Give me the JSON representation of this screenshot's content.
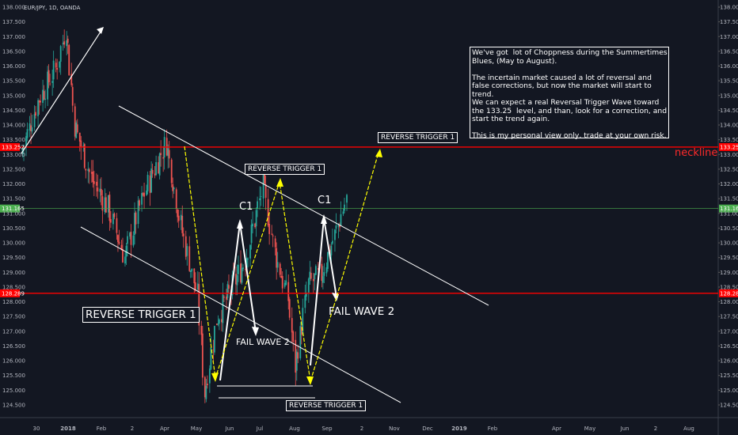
{
  "symbol_label": "EUR/JPY, 1D, OANDA",
  "note": "We've got  lot of Choppness during the Summertimes\nBlues, (May to August).\n\nThe incertain market caused a lot of reversal and\nfalse corrections, but now the market will start to\ntrend.\nWe can expect a real Reversal Trigger Wave toward\nthe 133.25  level, and than, look for a correction, and\nstart the trend again.\n\nThis is my personal view only, trade at your own risk.",
  "labels": {
    "rt_big": "REVERSE TRIGGER 1",
    "rt_mid": "REVERSE TRIGGER 1",
    "rt_top": "REVERSE TRIGGER 1",
    "rt_bottom": "REVERSE TRIGGER 1",
    "c1_left": "C1",
    "c1_right": "C1",
    "fail_left": "FAIL WAVE 2",
    "fail_right": "FAIL WAVE 2",
    "neckline": "neckline"
  },
  "colors": {
    "background": "#131722",
    "up_candle": "#26a69a",
    "down_candle": "#ef5350",
    "level_line": "#ff0000",
    "current_line": "#4caf50",
    "wave_arrow": "#ffff00",
    "channel": "#ffffff"
  },
  "chart_data": {
    "type": "candlestick",
    "title": "EUR/JPY, 1D, OANDA",
    "y_ticks": [
      124.5,
      125.0,
      125.5,
      126.0,
      126.5,
      127.0,
      127.5,
      128.0,
      128.5,
      129.0,
      129.5,
      130.0,
      130.5,
      131.0,
      131.5,
      132.0,
      132.5,
      133.0,
      133.5,
      134.0,
      134.5,
      135.0,
      135.5,
      136.0,
      136.5,
      137.0,
      137.5,
      138.0
    ],
    "ylim": [
      124.2,
      138.15
    ],
    "x_ticks": [
      "30",
      "2018",
      "Feb",
      "2",
      "Apr",
      "May",
      "Jun",
      "Jul",
      "Aug",
      "Sep",
      "2",
      "Nov",
      "Dec",
      "2019",
      "Feb",
      "Apr",
      "May",
      "Jun",
      "2",
      "Aug"
    ],
    "levels": [
      {
        "value": 133.252,
        "label": "133.252",
        "color": "#ff0000"
      },
      {
        "value": 128.289,
        "label": "128.289",
        "color": "#ff0000"
      },
      {
        "value": 131.165,
        "label": "131.165",
        "color": "#4caf50"
      }
    ],
    "price_path": [
      [
        "2017-12-26",
        133.0
      ],
      [
        "2018-01-09",
        134.8
      ],
      [
        "2018-01-24",
        135.9
      ],
      [
        "2018-02-02",
        137.3
      ],
      [
        "2018-02-09",
        134.0
      ],
      [
        "2018-02-23",
        132.2
      ],
      [
        "2018-03-09",
        131.2
      ],
      [
        "2018-03-23",
        129.5
      ],
      [
        "2018-04-06",
        131.4
      ],
      [
        "2018-04-20",
        132.8
      ],
      [
        "2018-04-27",
        133.4
      ],
      [
        "2018-05-09",
        130.6
      ],
      [
        "2018-05-23",
        128.2
      ],
      [
        "2018-05-29",
        124.9
      ],
      [
        "2018-06-08",
        127.4
      ],
      [
        "2018-06-20",
        128.4
      ],
      [
        "2018-07-02",
        129.4
      ],
      [
        "2018-07-17",
        131.9
      ],
      [
        "2018-07-27",
        129.7
      ],
      [
        "2018-08-07",
        128.1
      ],
      [
        "2018-08-13",
        125.8
      ],
      [
        "2018-08-24",
        128.6
      ],
      [
        "2018-09-04",
        128.9
      ],
      [
        "2018-09-18",
        130.6
      ],
      [
        "2018-09-25",
        131.5
      ]
    ]
  }
}
